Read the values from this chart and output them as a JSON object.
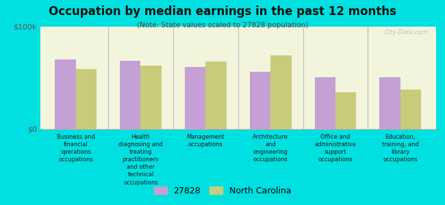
{
  "title": "Occupation by median earnings in the past 12 months",
  "subtitle": "(Note: State values scaled to 27828 population)",
  "background_color": "#00e0e0",
  "plot_bg_color": "#f2f5dc",
  "categories": [
    "Business and\nfinancial\noperations\noccupations",
    "Health\ndiagnosing and\ntreating\npractitioners\nand other\ntechnical\noccupations",
    "Management\noccupations",
    "Architecture\nand\nengineering\noccupations",
    "Office and\nadministrative\nsupport\noccupations",
    "Education,\ntraining, and\nlibrary\noccupations"
  ],
  "values_27828": [
    68000,
    67000,
    61000,
    56000,
    51000,
    51000
  ],
  "values_nc": [
    59000,
    62000,
    66000,
    72000,
    36000,
    39000
  ],
  "color_27828": "#c4a0d4",
  "color_nc": "#c8cc7a",
  "ylim": [
    0,
    100000
  ],
  "ytick_labels": [
    "$0",
    "$100k"
  ],
  "legend_27828": "27828",
  "legend_nc": "North Carolina",
  "watermark": "City-Data.com"
}
